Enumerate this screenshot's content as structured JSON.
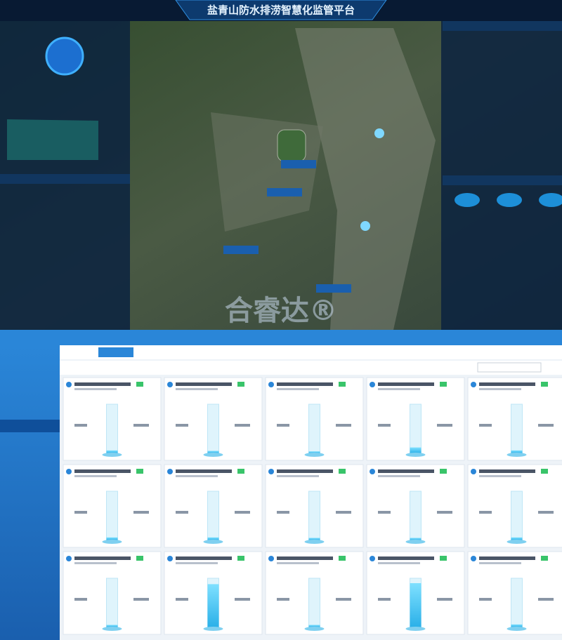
{
  "header": {
    "title": "盐青山防水排涝智慧化监管平台"
  },
  "watermark": "合睿达®",
  "cards": [
    {
      "level": 6
    },
    {
      "level": 5
    },
    {
      "level": 4
    },
    {
      "level": 12
    },
    {
      "level": 6
    },
    {
      "level": 6
    },
    {
      "level": 6
    },
    {
      "level": 5
    },
    {
      "level": 5
    },
    {
      "level": 6
    },
    {
      "level": 5
    },
    {
      "level": 88
    },
    {
      "level": 5
    },
    {
      "level": 90
    },
    {
      "level": 6
    }
  ]
}
